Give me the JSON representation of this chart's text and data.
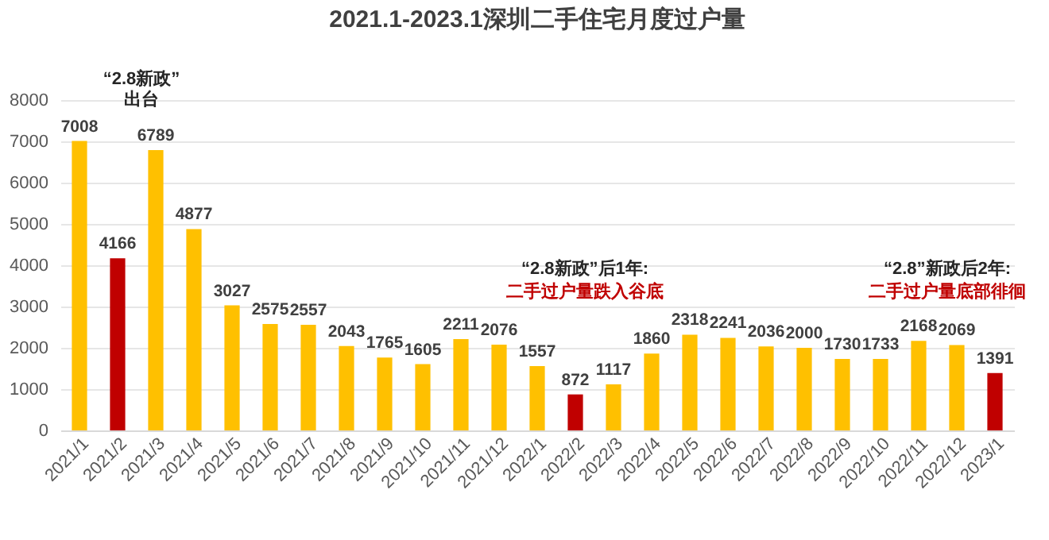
{
  "chart_data": {
    "type": "bar",
    "title": "2021.1-2023.1深圳二手住宅月度过户量",
    "categories": [
      "2021/1",
      "2021/2",
      "2021/3",
      "2021/4",
      "2021/5",
      "2021/6",
      "2021/7",
      "2021/8",
      "2021/9",
      "2021/10",
      "2021/11",
      "2021/12",
      "2022/1",
      "2022/2",
      "2022/3",
      "2022/4",
      "2022/5",
      "2022/6",
      "2022/7",
      "2022/8",
      "2022/9",
      "2022/10",
      "2022/11",
      "2022/12",
      "2023/1"
    ],
    "values": [
      7008,
      4166,
      6789,
      4877,
      3027,
      2575,
      2557,
      2043,
      1765,
      1605,
      2211,
      2076,
      1557,
      872,
      1117,
      1860,
      2318,
      2241,
      2036,
      2000,
      1730,
      1733,
      2168,
      2069,
      1391
    ],
    "colors": [
      "#ffc000",
      "#c00000",
      "#ffc000",
      "#ffc000",
      "#ffc000",
      "#ffc000",
      "#ffc000",
      "#ffc000",
      "#ffc000",
      "#ffc000",
      "#ffc000",
      "#ffc000",
      "#ffc000",
      "#c00000",
      "#ffc000",
      "#ffc000",
      "#ffc000",
      "#ffc000",
      "#ffc000",
      "#ffc000",
      "#ffc000",
      "#ffc000",
      "#ffc000",
      "#ffc000",
      "#c00000"
    ],
    "ylim": [
      0,
      8000
    ],
    "yticks": [
      0,
      1000,
      2000,
      3000,
      4000,
      5000,
      6000,
      7000,
      8000
    ],
    "grid": "y",
    "data_labels": true,
    "annotations": [
      "“2.8新政”\n出台",
      "“2.8新政”后1年:",
      "二手过户量跌入谷底",
      "“2.8”新政后2年:",
      "二手过户量底部徘徊"
    ]
  }
}
